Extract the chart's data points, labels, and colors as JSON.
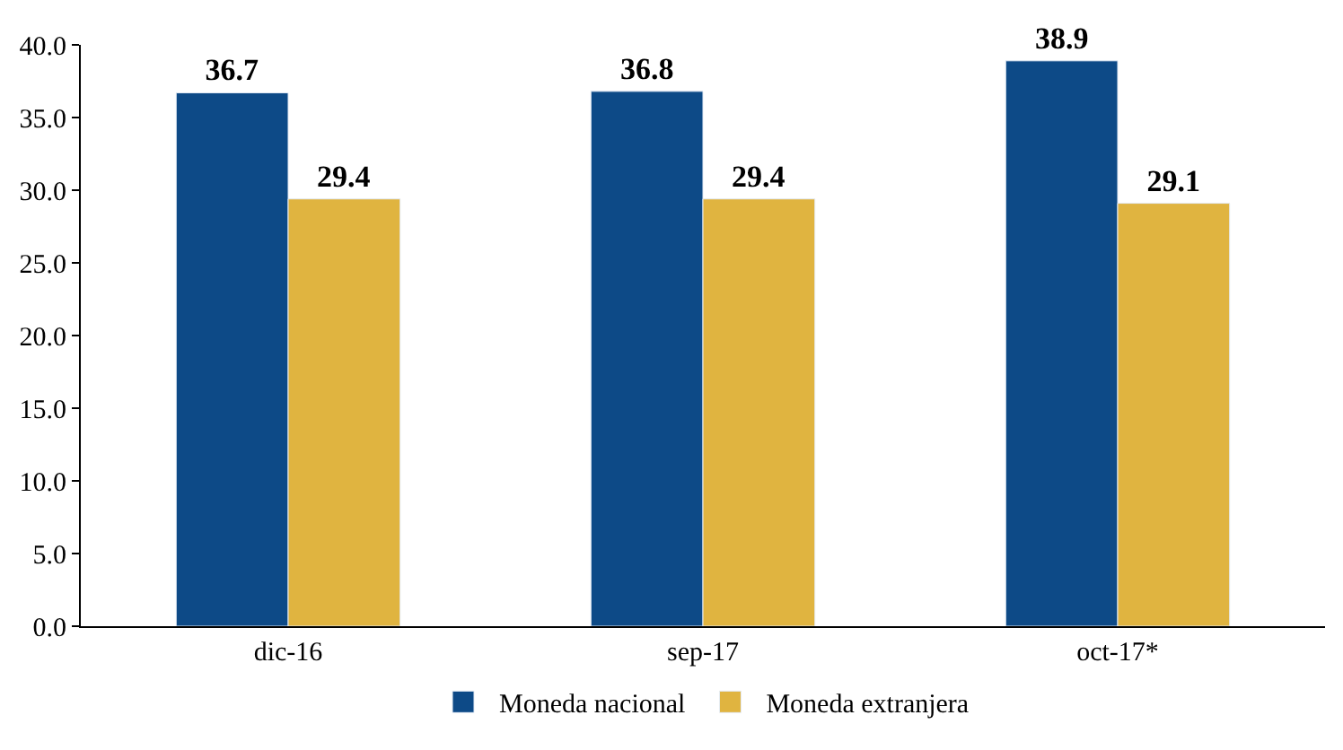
{
  "chart_data": {
    "type": "bar",
    "categories": [
      "dic-16",
      "sep-17",
      "oct-17*"
    ],
    "series": [
      {
        "name": "Moneda nacional",
        "color": "#0d4a87",
        "values": [
          36.7,
          36.8,
          38.9
        ]
      },
      {
        "name": "Moneda extranjera",
        "color": "#e0b440",
        "values": [
          29.4,
          29.4,
          29.1
        ]
      }
    ],
    "ylim": [
      0,
      40
    ],
    "yticks": [
      {
        "value": 0,
        "label": "0.0"
      },
      {
        "value": 5,
        "label": "5.0"
      },
      {
        "value": 10,
        "label": "10.0"
      },
      {
        "value": 15,
        "label": "15.0"
      },
      {
        "value": 20,
        "label": "20.0"
      },
      {
        "value": 25,
        "label": "25.0"
      },
      {
        "value": 30,
        "label": "30.0"
      },
      {
        "value": 35,
        "label": "35.0"
      },
      {
        "value": 40,
        "label": "40.0"
      }
    ],
    "data_labels": true,
    "legend": "bottom"
  }
}
